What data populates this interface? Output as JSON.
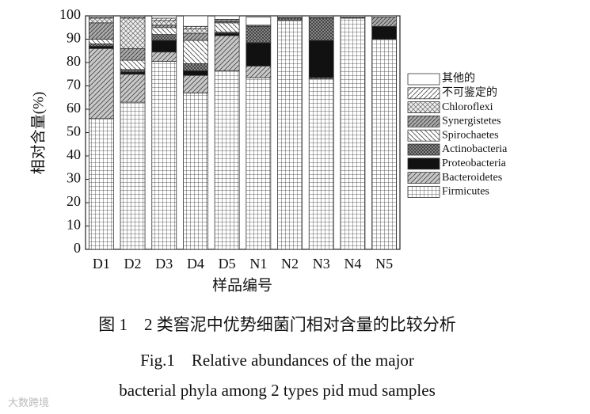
{
  "chart_data": {
    "type": "stacked_bar",
    "x_label": "样品编号",
    "y_label": "相对含量(%)",
    "categories": [
      "D1",
      "D2",
      "D3",
      "D4",
      "D5",
      "N1",
      "N2",
      "N3",
      "N4",
      "N5"
    ],
    "ylim": [
      0,
      100
    ],
    "yticks": [
      0,
      10,
      20,
      30,
      40,
      50,
      60,
      70,
      80,
      90,
      100
    ],
    "legend": "right",
    "series": [
      {
        "name": "Firmicutes",
        "color": "#ffffff",
        "pattern": "p-grid",
        "values": [
          56,
          63,
          80.5,
          67,
          76.5,
          73.5,
          98,
          73,
          99,
          90
        ]
      },
      {
        "name": "Bacteroidetes",
        "color": "#b8b8b8",
        "pattern": "p-diag-gray",
        "values": [
          30,
          12,
          4,
          7.5,
          15,
          5,
          0,
          0.5,
          0,
          0
        ]
      },
      {
        "name": "Proteobacteria",
        "color": "#111111",
        "pattern": "p-black",
        "values": [
          1,
          1,
          5,
          2,
          1,
          10,
          0,
          16,
          0,
          5.5
        ]
      },
      {
        "name": "Actinobacteria",
        "color": "#999999",
        "pattern": "p-cross-dark",
        "values": [
          1,
          1,
          2.5,
          3,
          0.5,
          7,
          1,
          9.5,
          0.5,
          0
        ]
      },
      {
        "name": "Spirochaetes",
        "color": "#ffffff",
        "pattern": "p-back",
        "values": [
          2,
          4,
          3,
          10,
          4,
          0,
          0,
          0,
          0,
          0
        ]
      },
      {
        "name": "Synergistetes",
        "color": "#a8a8a8",
        "pattern": "p-diag-gray2",
        "values": [
          7,
          5,
          1,
          3,
          0.5,
          0.5,
          0.5,
          0.5,
          0,
          4
        ]
      },
      {
        "name": "Chloroflexi",
        "color": "#dddddd",
        "pattern": "p-cross-light",
        "values": [
          2,
          13,
          2,
          2,
          0.5,
          0,
          0,
          0,
          0,
          0
        ]
      },
      {
        "name": "不可鉴定的",
        "color": "#ffffff",
        "pattern": "p-fwd",
        "values": [
          0.5,
          0.5,
          1,
          1,
          0.5,
          0,
          0,
          0,
          0,
          0
        ]
      },
      {
        "name": "其他的",
        "color": "#ffffff",
        "pattern": "p-white",
        "values": [
          0.5,
          0.5,
          1,
          4.5,
          1.5,
          3.5,
          0.5,
          0.5,
          0.5,
          0.5
        ]
      }
    ]
  },
  "caption": {
    "zh": "图 1　2 类窖泥中优势细菌门相对含量的比较分析",
    "en1": "Fig.1　Relative abundances of the major",
    "en2": "bacterial phyla among 2 types pid mud samples"
  },
  "watermark": "大数跨境"
}
